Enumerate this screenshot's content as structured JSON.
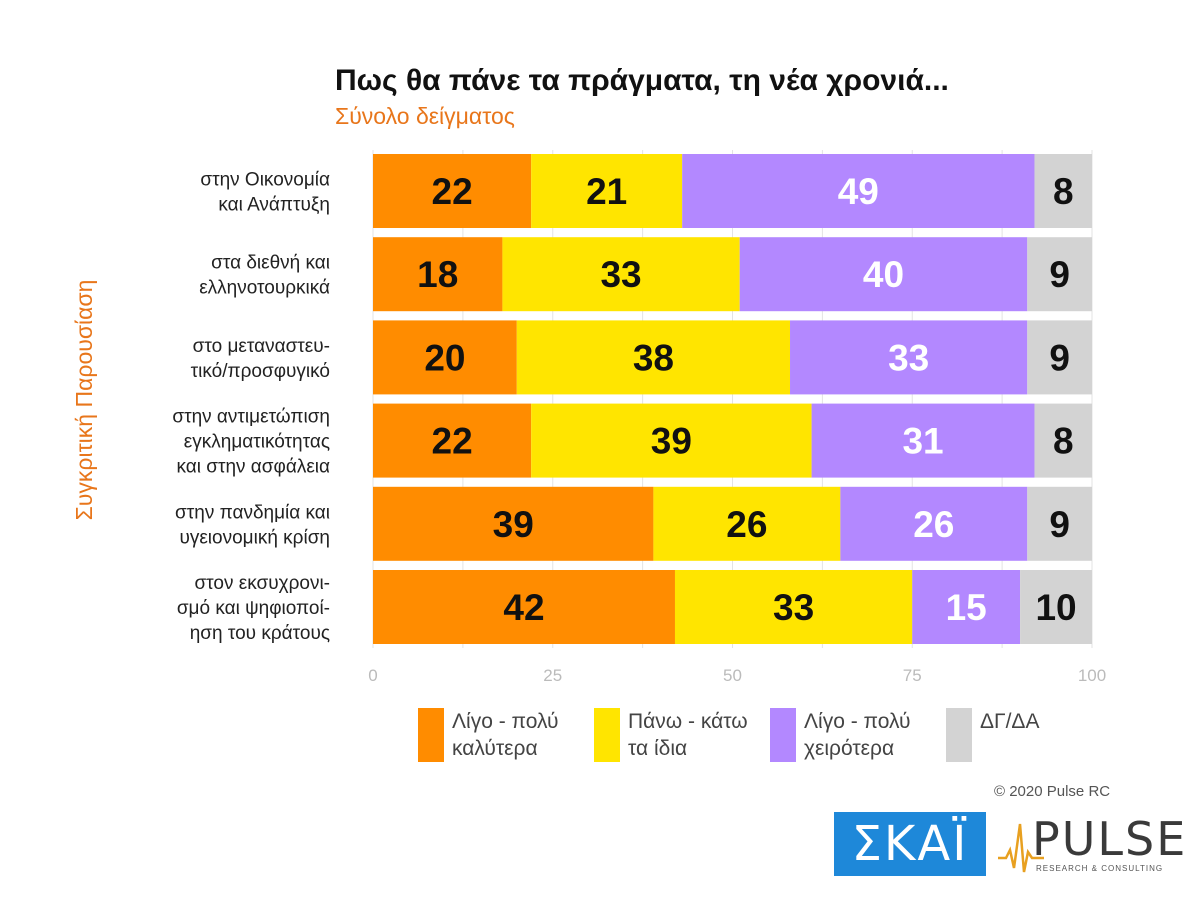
{
  "chart_data": {
    "type": "bar",
    "stacked": true,
    "orientation": "horizontal",
    "title": "Πως θα πάνε τα πράγματα, τη νέα χρονιά...",
    "subtitle": "Σύνολο δείγματος",
    "ylabel": "Συγκριτική Παρουσίαση",
    "xlabel": "",
    "xlim": [
      0,
      100
    ],
    "xticks": [
      0,
      25,
      50,
      75,
      100
    ],
    "grid": true,
    "legend_position": "bottom",
    "categories": [
      [
        "στην Οικονομία",
        "και Ανάπτυξη"
      ],
      [
        "στα διεθνή και",
        "ελληνοτουρκικά"
      ],
      [
        "στο μεταναστευ-",
        "τικό/προσφυγικό"
      ],
      [
        "στην αντιμετώπιση",
        "εγκληματικότητας",
        "και στην ασφάλεια"
      ],
      [
        "στην πανδημία και",
        "υγειονομική κρίση"
      ],
      [
        "στον εκσυχρονι-",
        "σμό και ψηφιοποί-",
        "ηση του κράτους"
      ]
    ],
    "series": [
      {
        "name": "Λίγο - πολύ\nκαλύτερα",
        "color": "#ff8c00",
        "label_color": "#111111",
        "values": [
          22,
          18,
          20,
          22,
          39,
          42
        ]
      },
      {
        "name": "Πάνω - κάτω\nτα ίδια",
        "color": "#ffe500",
        "label_color": "#111111",
        "values": [
          21,
          33,
          38,
          39,
          26,
          33
        ]
      },
      {
        "name": "Λίγο - πολύ\nχειρότερα",
        "color": "#b388ff",
        "label_color": "#ffffff",
        "values": [
          49,
          40,
          33,
          31,
          26,
          15
        ]
      },
      {
        "name": "ΔΓ/ΔΑ",
        "color": "#d3d3d3",
        "label_color": "#111111",
        "values": [
          8,
          9,
          9,
          8,
          9,
          10
        ]
      }
    ]
  },
  "colors": {
    "title": "#111111",
    "subtitle": "#e8761b",
    "ylabel": "#e8761b",
    "axis_ticks": "#bbbbbb",
    "grid": "#e3e3e3"
  },
  "footer": {
    "copyright": "© 2020 Pulse RC",
    "skai_logo": "ΣΚΑΪ",
    "pulse_logo": "PULSE",
    "pulse_tagline": "RESEARCH & CONSULTING"
  }
}
